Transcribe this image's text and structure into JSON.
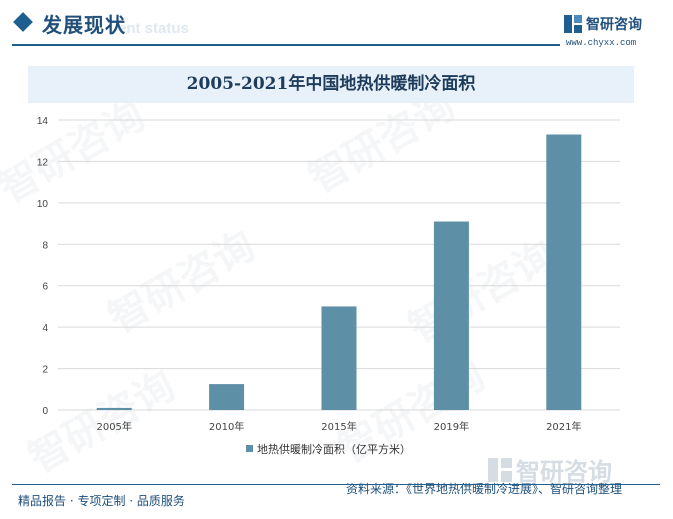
{
  "header": {
    "section_title": "发展现状",
    "section_subtitle": "ent status",
    "brand_name": "智研咨询",
    "brand_url": "www.chyxx.com"
  },
  "chart_data": {
    "type": "bar",
    "title": "2005-2021年中国地热供暖制冷面积",
    "categories": [
      "2005年",
      "2010年",
      "2015年",
      "2019年",
      "2021年"
    ],
    "series": [
      {
        "name": "地热供暖制冷面积（亿平方米）",
        "values": [
          0.1,
          1.25,
          5.0,
          9.1,
          13.3
        ],
        "color": "#5d8fa6"
      }
    ],
    "ylim": [
      0,
      14
    ],
    "yticks": [
      "0",
      "2",
      "4",
      "6",
      "8",
      "10",
      "12",
      "14"
    ],
    "grid": true,
    "legend_position": "bottom-center"
  },
  "footer": {
    "left_text": "精品报告 · 专项定制 · 品质服务",
    "source_text": "资料来源：《世界地热供暖制冷进展》、智研咨询整理",
    "logo_text": "智研咨询"
  },
  "watermark_text": "智研咨询"
}
